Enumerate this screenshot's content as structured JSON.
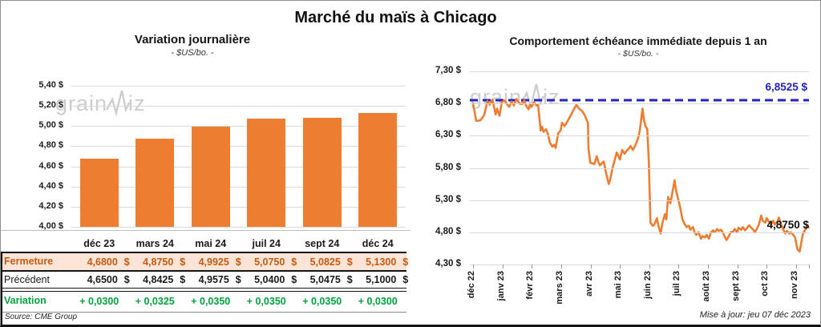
{
  "page": {
    "title": "Marché du maïs à Chicago",
    "source_note": "Source: CME Group",
    "update_note": "Mise à jour: jeu 07 déc 2023",
    "watermark": {
      "part1": "grain",
      "part2": "iz"
    }
  },
  "colors": {
    "orange": "#ED7D31",
    "fermeture_text": "#C55A11",
    "fermeture_bg": "#FCE4D6",
    "green": "#00A33C",
    "blue": "#2323C8",
    "gridline": "#D9D9D9"
  },
  "table": {
    "columns": [
      "déc 23",
      "mars 24",
      "mai 24",
      "juil 24",
      "sept 24",
      "déc 24"
    ],
    "rows": [
      {
        "label": "Fermeture",
        "values": [
          "4,6800",
          "4,8750",
          "4,9925",
          "5,0750",
          "5,0825",
          "5,1300"
        ],
        "unit": "$",
        "style": "fermeture"
      },
      {
        "label": "Précédent",
        "values": [
          "4,6500",
          "4,8425",
          "4,9575",
          "5,0400",
          "5,0475",
          "5,1000"
        ],
        "unit": "$",
        "style": "precedent"
      },
      {
        "label": "Variation",
        "values": [
          "+ 0,0300",
          "+ 0,0325",
          "+ 0,0350",
          "+ 0,0350",
          "+ 0,0350",
          "+ 0,0300"
        ],
        "unit": "",
        "style": "variation"
      }
    ]
  },
  "chart_data": [
    {
      "type": "bar",
      "title": "Variation journalière",
      "subtitle": "- $US/bo. -",
      "categories": [
        "déc 23",
        "mars 24",
        "mai 24",
        "juil 24",
        "sept 24",
        "déc 24"
      ],
      "values": [
        4.68,
        4.875,
        4.9925,
        5.075,
        5.0825,
        5.13
      ],
      "ylim": [
        4.0,
        5.4
      ],
      "ytick_labels": [
        "5,40 $",
        "5,20 $",
        "5,00 $",
        "4,80 $",
        "4,60 $",
        "4,40 $",
        "4,20 $",
        "4,00 $"
      ],
      "grid": true,
      "bar_color": "#ED7D31"
    },
    {
      "type": "line",
      "title": "Comportement échéance immédiate depuis 1 an",
      "subtitle": "- $US/bo. -",
      "x_labels": [
        "déc 22",
        "janv 23",
        "févr 23",
        "mars 23",
        "avr 23",
        "mai 23",
        "juin 23",
        "juil 23",
        "août 23",
        "sept 23",
        "oct 23",
        "nov 23"
      ],
      "ylim": [
        4.3,
        7.3
      ],
      "ytick_labels": [
        "7,30 $",
        "6,80 $",
        "6,30 $",
        "5,80 $",
        "5,30 $",
        "4,80 $",
        "4,30 $"
      ],
      "grid": true,
      "line_color": "#ED7D31",
      "reference_line": {
        "value": 6.8525,
        "label": "6,8525 $",
        "color": "#2323C8",
        "style": "dashed"
      },
      "last_value": 4.875,
      "last_label": "4,8750 $",
      "points": [
        [
          0.0,
          6.8
        ],
        [
          0.11,
          6.53
        ],
        [
          0.25,
          6.54
        ],
        [
          0.38,
          6.62
        ],
        [
          0.49,
          6.84
        ],
        [
          0.57,
          6.78
        ],
        [
          0.66,
          6.86
        ],
        [
          0.77,
          6.63
        ],
        [
          0.82,
          6.72
        ],
        [
          0.9,
          6.61
        ],
        [
          0.98,
          6.82
        ],
        [
          1.07,
          6.85
        ],
        [
          1.17,
          6.78
        ],
        [
          1.23,
          6.75
        ],
        [
          1.31,
          6.83
        ],
        [
          1.39,
          6.77
        ],
        [
          1.48,
          6.87
        ],
        [
          1.58,
          6.8
        ],
        [
          1.67,
          6.79
        ],
        [
          1.75,
          6.85
        ],
        [
          1.8,
          6.77
        ],
        [
          1.89,
          6.71
        ],
        [
          1.94,
          6.79
        ],
        [
          1.99,
          6.75
        ],
        [
          2.08,
          6.82
        ],
        [
          2.16,
          6.77
        ],
        [
          2.21,
          6.79
        ],
        [
          2.27,
          6.53
        ],
        [
          2.3,
          6.38
        ],
        [
          2.35,
          6.44
        ],
        [
          2.4,
          6.36
        ],
        [
          2.49,
          6.4
        ],
        [
          2.54,
          6.34
        ],
        [
          2.62,
          6.19
        ],
        [
          2.7,
          6.13
        ],
        [
          2.76,
          6.16
        ],
        [
          2.81,
          6.11
        ],
        [
          2.9,
          6.34
        ],
        [
          2.98,
          6.38
        ],
        [
          3.03,
          6.5
        ],
        [
          3.11,
          6.45
        ],
        [
          3.17,
          6.49
        ],
        [
          3.31,
          6.6
        ],
        [
          3.42,
          6.7
        ],
        [
          3.52,
          6.78
        ],
        [
          3.61,
          6.72
        ],
        [
          3.72,
          6.68
        ],
        [
          3.8,
          6.62
        ],
        [
          3.91,
          6.5
        ],
        [
          3.93,
          6.1
        ],
        [
          3.99,
          5.88
        ],
        [
          4.07,
          5.87
        ],
        [
          4.13,
          5.86
        ],
        [
          4.21,
          5.98
        ],
        [
          4.26,
          5.9
        ],
        [
          4.32,
          5.84
        ],
        [
          4.4,
          5.88
        ],
        [
          4.45,
          5.9
        ],
        [
          4.54,
          5.7
        ],
        [
          4.62,
          5.55
        ],
        [
          4.67,
          5.62
        ],
        [
          4.75,
          5.8
        ],
        [
          4.84,
          5.95
        ],
        [
          4.89,
          6.04
        ],
        [
          4.95,
          5.98
        ],
        [
          5.0,
          5.93
        ],
        [
          5.08,
          6.08
        ],
        [
          5.16,
          6.02
        ],
        [
          5.22,
          6.06
        ],
        [
          5.3,
          6.1
        ],
        [
          5.36,
          6.14
        ],
        [
          5.44,
          6.08
        ],
        [
          5.49,
          6.12
        ],
        [
          5.57,
          6.2
        ],
        [
          5.63,
          6.28
        ],
        [
          5.68,
          6.39
        ],
        [
          5.77,
          6.72
        ],
        [
          5.82,
          6.55
        ],
        [
          5.87,
          6.45
        ],
        [
          5.93,
          6.4
        ],
        [
          5.98,
          5.95
        ],
        [
          6.04,
          4.95
        ],
        [
          6.12,
          4.9
        ],
        [
          6.17,
          4.92
        ],
        [
          6.26,
          5.02
        ],
        [
          6.31,
          4.9
        ],
        [
          6.39,
          4.78
        ],
        [
          6.45,
          4.95
        ],
        [
          6.53,
          5.08
        ],
        [
          6.58,
          5.0
        ],
        [
          6.64,
          5.35
        ],
        [
          6.72,
          5.25
        ],
        [
          6.78,
          5.4
        ],
        [
          6.86,
          5.61
        ],
        [
          6.91,
          5.45
        ],
        [
          6.99,
          5.3
        ],
        [
          7.05,
          5.19
        ],
        [
          7.13,
          5.0
        ],
        [
          7.19,
          4.94
        ],
        [
          7.27,
          4.88
        ],
        [
          7.35,
          4.9
        ],
        [
          7.4,
          4.84
        ],
        [
          7.49,
          4.88
        ],
        [
          7.54,
          4.8
        ],
        [
          7.6,
          4.76
        ],
        [
          7.68,
          4.8
        ],
        [
          7.76,
          4.7
        ],
        [
          7.81,
          4.74
        ],
        [
          7.9,
          4.72
        ],
        [
          7.95,
          4.76
        ],
        [
          8.03,
          4.7
        ],
        [
          8.09,
          4.79
        ],
        [
          8.17,
          4.83
        ],
        [
          8.22,
          4.8
        ],
        [
          8.31,
          4.85
        ],
        [
          8.36,
          4.82
        ],
        [
          8.44,
          4.84
        ],
        [
          8.5,
          4.8
        ],
        [
          8.58,
          4.72
        ],
        [
          8.63,
          4.68
        ],
        [
          8.72,
          4.75
        ],
        [
          8.77,
          4.8
        ],
        [
          8.85,
          4.81
        ],
        [
          8.91,
          4.85
        ],
        [
          8.99,
          4.8
        ],
        [
          9.04,
          4.87
        ],
        [
          9.13,
          4.84
        ],
        [
          9.18,
          4.88
        ],
        [
          9.26,
          4.83
        ],
        [
          9.32,
          4.86
        ],
        [
          9.4,
          4.91
        ],
        [
          9.45,
          4.88
        ],
        [
          9.54,
          4.84
        ],
        [
          9.59,
          4.8
        ],
        [
          9.67,
          4.86
        ],
        [
          9.73,
          4.92
        ],
        [
          9.81,
          5.06
        ],
        [
          9.86,
          4.98
        ],
        [
          9.95,
          4.95
        ],
        [
          10.0,
          5.02
        ],
        [
          10.08,
          4.96
        ],
        [
          10.14,
          4.92
        ],
        [
          10.22,
          4.98
        ],
        [
          10.27,
          4.92
        ],
        [
          10.36,
          4.96
        ],
        [
          10.41,
          5.03
        ],
        [
          10.49,
          4.92
        ],
        [
          10.55,
          4.85
        ],
        [
          10.63,
          4.78
        ],
        [
          10.68,
          4.82
        ],
        [
          10.77,
          4.78
        ],
        [
          10.82,
          4.8
        ],
        [
          10.9,
          4.76
        ],
        [
          10.96,
          4.72
        ],
        [
          11.04,
          4.54
        ],
        [
          11.12,
          4.5
        ],
        [
          11.18,
          4.65
        ],
        [
          11.23,
          4.78
        ],
        [
          11.31,
          4.84
        ],
        [
          11.37,
          4.9
        ],
        [
          11.42,
          4.875
        ]
      ]
    }
  ]
}
